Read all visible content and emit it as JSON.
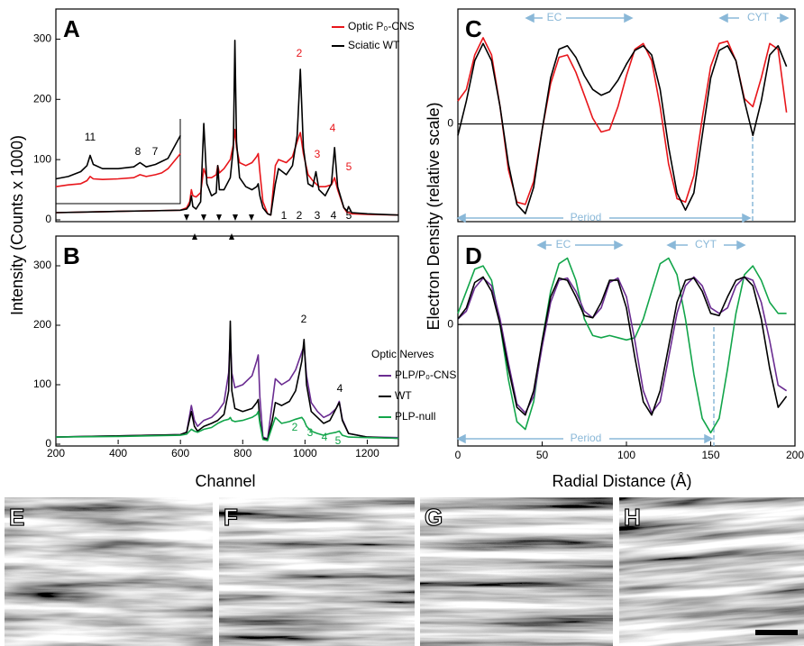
{
  "figure": {
    "left_ylabel": "Intensity (Counts x 1000)",
    "left_xlabel": "Channel",
    "right_ylabel": "Electron Density (relative scale)",
    "right_xlabel": "Radial Distance (Å)"
  },
  "chart_data": [
    {
      "type": "line",
      "panel": "A",
      "xlim": [
        200,
        1300
      ],
      "ylim": [
        0,
        350
      ],
      "yticks": [
        0,
        100,
        200,
        300
      ],
      "legend": "upper right",
      "x": [
        200,
        300,
        400,
        500,
        600,
        620,
        630,
        635,
        640,
        650,
        665,
        675,
        685,
        700,
        715,
        720,
        725,
        740,
        760,
        770,
        775,
        780,
        790,
        810,
        830,
        845,
        850,
        855,
        865,
        880,
        890,
        905,
        915,
        940,
        960,
        975,
        985,
        995,
        1010,
        1025,
        1035,
        1045,
        1065,
        1085,
        1095,
        1105,
        1125,
        1135,
        1140,
        1150,
        1200,
        1300
      ],
      "series": [
        {
          "name": "Optic P₀-CNS",
          "color": "#e8161b",
          "values": [
            12,
            13,
            14,
            15,
            16,
            20,
            30,
            50,
            40,
            38,
            45,
            85,
            70,
            70,
            75,
            90,
            78,
            85,
            100,
            125,
            150,
            120,
            95,
            90,
            95,
            105,
            110,
            80,
            30,
            10,
            8,
            90,
            100,
            95,
            105,
            130,
            145,
            110,
            75,
            65,
            60,
            55,
            55,
            58,
            70,
            50,
            20,
            12,
            12,
            10,
            9,
            8
          ]
        },
        {
          "name": "Sciatic WT",
          "color": "#000000",
          "values": [
            12,
            13,
            14,
            15,
            16,
            18,
            25,
            40,
            22,
            18,
            30,
            160,
            60,
            40,
            45,
            90,
            50,
            50,
            70,
            120,
            298,
            130,
            70,
            55,
            50,
            55,
            60,
            40,
            20,
            10,
            8,
            60,
            85,
            75,
            90,
            140,
            250,
            120,
            60,
            55,
            80,
            50,
            40,
            60,
            120,
            55,
            20,
            15,
            22,
            12,
            10,
            8
          ]
        }
      ],
      "annotations": [
        {
          "text": "2",
          "color": "#e8161b"
        },
        {
          "text": "3",
          "color": "#e8161b"
        },
        {
          "text": "4",
          "color": "#e8161b"
        },
        {
          "text": "5",
          "color": "#e8161b"
        },
        {
          "text": "1",
          "color": "#000000"
        },
        {
          "text": "2",
          "color": "#000000"
        },
        {
          "text": "3",
          "color": "#000000"
        },
        {
          "text": "4",
          "color": "#000000"
        },
        {
          "text": "5",
          "color": "#000000"
        }
      ]
    },
    {
      "type": "line",
      "inset": true,
      "xlim": [
        200,
        1300
      ],
      "ylim": [
        0,
        350
      ],
      "x": [
        200,
        240,
        280,
        300,
        310,
        320,
        350,
        400,
        450,
        470,
        490,
        520,
        540,
        560,
        600
      ],
      "series": [
        {
          "color": "#e8161b",
          "values": [
            55,
            58,
            60,
            65,
            72,
            68,
            67,
            68,
            70,
            75,
            72,
            75,
            78,
            85,
            110
          ]
        },
        {
          "color": "#000000",
          "values": [
            68,
            72,
            80,
            90,
            107,
            92,
            85,
            85,
            88,
            95,
            88,
            92,
            97,
            102,
            140
          ]
        }
      ],
      "annotations": [
        {
          "text": "11",
          "color": "#000000"
        },
        {
          "text": "8",
          "color": "#000000"
        },
        {
          "text": "7",
          "color": "#000000"
        }
      ]
    },
    {
      "type": "line",
      "panel": "B",
      "xlim": [
        200,
        1300
      ],
      "xticks": [
        200,
        400,
        600,
        800,
        1000,
        1200
      ],
      "ylim": [
        0,
        350
      ],
      "yticks": [
        0,
        100,
        200,
        300
      ],
      "legend": "right",
      "legend_title": "Optic Nerves",
      "x": [
        200,
        400,
        600,
        620,
        635,
        645,
        655,
        675,
        700,
        720,
        740,
        755,
        760,
        765,
        775,
        800,
        830,
        845,
        850,
        855,
        865,
        880,
        895,
        905,
        925,
        950,
        970,
        990,
        997,
        1005,
        1020,
        1040,
        1060,
        1080,
        1100,
        1110,
        1120,
        1140,
        1200,
        1300
      ],
      "series": [
        {
          "name": "PLP/P₀-CNS",
          "color": "#6a2c91",
          "values": [
            12,
            14,
            16,
            20,
            65,
            40,
            30,
            40,
            45,
            55,
            70,
            120,
            185,
            120,
            95,
            100,
            115,
            140,
            150,
            80,
            12,
            9,
            70,
            110,
            100,
            108,
            125,
            155,
            165,
            115,
            70,
            55,
            45,
            50,
            60,
            72,
            42,
            18,
            12,
            11
          ]
        },
        {
          "name": "WT",
          "color": "#000000",
          "values": [
            12,
            14,
            16,
            20,
            55,
            30,
            22,
            30,
            35,
            40,
            50,
            90,
            207,
            90,
            60,
            55,
            60,
            70,
            75,
            40,
            10,
            8,
            40,
            70,
            65,
            72,
            90,
            140,
            176,
            100,
            55,
            45,
            35,
            40,
            60,
            70,
            40,
            18,
            12,
            10
          ]
        },
        {
          "name": "PLP-null",
          "color": "#12a54a",
          "values": [
            12,
            13,
            15,
            17,
            25,
            22,
            20,
            25,
            28,
            35,
            40,
            42,
            45,
            40,
            38,
            40,
            45,
            50,
            55,
            35,
            8,
            6,
            30,
            45,
            35,
            38,
            42,
            45,
            40,
            30,
            22,
            18,
            15,
            18,
            20,
            22,
            15,
            12,
            11,
            10
          ]
        }
      ],
      "annotations": [
        {
          "text": "2",
          "color": "#000000"
        },
        {
          "text": "4",
          "color": "#000000"
        },
        {
          "text": "2",
          "color": "#12a54a"
        },
        {
          "text": "3",
          "color": "#12a54a"
        },
        {
          "text": "4",
          "color": "#12a54a"
        },
        {
          "text": "5",
          "color": "#12a54a"
        }
      ]
    },
    {
      "type": "line",
      "panel": "C",
      "xlim": [
        0,
        200
      ],
      "ylim": [
        -0.85,
        1
      ],
      "yticks": [
        0
      ],
      "grid": true,
      "x": [
        0,
        5,
        10,
        15,
        20,
        25,
        30,
        35,
        40,
        45,
        50,
        55,
        60,
        65,
        70,
        75,
        80,
        85,
        90,
        95,
        100,
        105,
        110,
        115,
        120,
        125,
        130,
        135,
        140,
        145,
        150,
        155,
        160,
        165,
        170,
        175,
        180,
        185,
        190,
        195
      ],
      "series": [
        {
          "color": "#e8161b",
          "values": [
            0.2,
            0.3,
            0.6,
            0.75,
            0.6,
            0.15,
            -0.4,
            -0.68,
            -0.7,
            -0.5,
            -0.05,
            0.35,
            0.58,
            0.6,
            0.45,
            0.25,
            0.05,
            -0.07,
            -0.05,
            0.15,
            0.42,
            0.65,
            0.7,
            0.55,
            0.15,
            -0.35,
            -0.65,
            -0.68,
            -0.45,
            0.05,
            0.5,
            0.7,
            0.72,
            0.55,
            0.22,
            0.15,
            0.4,
            0.7,
            0.65,
            0.1
          ]
        },
        {
          "color": "#000000",
          "values": [
            -0.1,
            0.2,
            0.55,
            0.7,
            0.55,
            0.15,
            -0.35,
            -0.7,
            -0.78,
            -0.55,
            -0.05,
            0.4,
            0.65,
            0.68,
            0.58,
            0.42,
            0.3,
            0.25,
            0.28,
            0.38,
            0.52,
            0.64,
            0.68,
            0.6,
            0.3,
            -0.2,
            -0.6,
            -0.75,
            -0.6,
            -0.1,
            0.4,
            0.64,
            0.68,
            0.55,
            0.2,
            -0.1,
            0.2,
            0.6,
            0.68,
            0.5
          ]
        }
      ],
      "annotations": [
        {
          "text": "EC",
          "color": "#8ab8d8"
        },
        {
          "text": "CYT",
          "color": "#8ab8d8"
        },
        {
          "text": "Period",
          "color": "#8ab8d8"
        }
      ]
    },
    {
      "type": "line",
      "panel": "D",
      "xlim": [
        0,
        200
      ],
      "xticks": [
        0,
        50,
        100,
        150,
        200
      ],
      "ylim": [
        -1.1,
        0.8
      ],
      "yticks": [
        0
      ],
      "grid": true,
      "x": [
        0,
        5,
        10,
        15,
        20,
        25,
        30,
        35,
        40,
        45,
        50,
        55,
        60,
        65,
        70,
        75,
        80,
        85,
        90,
        95,
        100,
        105,
        110,
        115,
        120,
        125,
        130,
        135,
        140,
        145,
        150,
        155,
        160,
        165,
        170,
        175,
        180,
        185,
        190,
        195
      ],
      "series": [
        {
          "color": "#12a54a",
          "values": [
            0.1,
            0.3,
            0.5,
            0.53,
            0.4,
            0.0,
            -0.5,
            -0.88,
            -0.95,
            -0.7,
            -0.15,
            0.3,
            0.55,
            0.6,
            0.4,
            0.05,
            -0.1,
            -0.12,
            -0.1,
            -0.12,
            -0.14,
            -0.12,
            0.05,
            0.3,
            0.55,
            0.6,
            0.45,
            0.05,
            -0.45,
            -0.85,
            -0.98,
            -0.85,
            -0.4,
            0.1,
            0.45,
            0.53,
            0.4,
            0.2,
            0.1,
            0.1
          ]
        },
        {
          "color": "#6a2c91",
          "values": [
            0.05,
            0.12,
            0.33,
            0.42,
            0.35,
            0.05,
            -0.35,
            -0.72,
            -0.8,
            -0.65,
            -0.2,
            0.2,
            0.4,
            0.42,
            0.3,
            0.12,
            0.06,
            0.15,
            0.38,
            0.42,
            0.25,
            -0.15,
            -0.6,
            -0.8,
            -0.7,
            -0.3,
            0.1,
            0.35,
            0.43,
            0.35,
            0.15,
            0.1,
            0.15,
            0.35,
            0.43,
            0.4,
            0.2,
            -0.15,
            -0.55,
            -0.6
          ]
        },
        {
          "color": "#000000",
          "values": [
            0.05,
            0.15,
            0.38,
            0.43,
            0.3,
            0.0,
            -0.4,
            -0.75,
            -0.82,
            -0.6,
            -0.15,
            0.25,
            0.42,
            0.4,
            0.25,
            0.08,
            0.06,
            0.2,
            0.4,
            0.4,
            0.15,
            -0.3,
            -0.7,
            -0.82,
            -0.6,
            -0.2,
            0.2,
            0.4,
            0.42,
            0.3,
            0.1,
            0.08,
            0.25,
            0.4,
            0.43,
            0.35,
            0.05,
            -0.4,
            -0.75,
            -0.65
          ]
        }
      ],
      "annotations": [
        {
          "text": "EC",
          "color": "#8ab8d8"
        },
        {
          "text": "CYT",
          "color": "#8ab8d8"
        },
        {
          "text": "Period",
          "color": "#8ab8d8"
        }
      ]
    }
  ],
  "micrographs": {
    "labels": [
      "E",
      "F",
      "G",
      "H"
    ]
  }
}
